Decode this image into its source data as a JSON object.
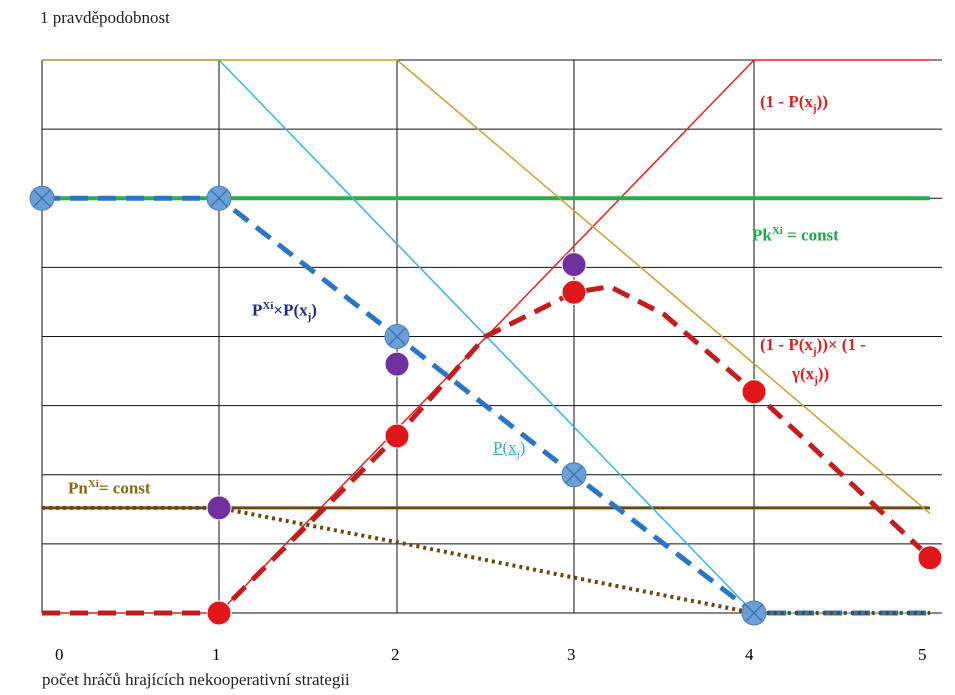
{
  "chart_data": {
    "type": "line",
    "title": "",
    "ylabel": "1 pravděpodobnost",
    "xlabel": "počet hráčů hrajících nekooperativní strategii",
    "x_ticks": [
      "0",
      "1",
      "2",
      "3",
      "4",
      "5"
    ],
    "xlim": [
      0,
      5
    ],
    "ylim": [
      0,
      1
    ],
    "grid": true,
    "series": [
      {
        "name": "(1 - P(xj))",
        "color": "#e8221f",
        "style": "solid",
        "points": [
          [
            0,
            0
          ],
          [
            1,
            0
          ],
          [
            4,
            1
          ],
          [
            5,
            1
          ]
        ]
      },
      {
        "name": "Pk^Xi = const",
        "color": "#22b04a",
        "style": "solid",
        "width": 4,
        "points": [
          [
            0,
            0.75
          ],
          [
            5,
            0.75
          ]
        ]
      },
      {
        "name": "Pn^Xi = const",
        "color": "#6b4612",
        "style": "solid",
        "width": 3,
        "points": [
          [
            0,
            0.19
          ],
          [
            5,
            0.19
          ]
        ]
      },
      {
        "name": "P(xj)",
        "color": "#35b5e8",
        "style": "solid",
        "points": [
          [
            0,
            1
          ],
          [
            1,
            1
          ],
          [
            4,
            0
          ],
          [
            5,
            0
          ]
        ]
      },
      {
        "name": "",
        "color": "#c9a233",
        "style": "solid",
        "points": [
          [
            0,
            1
          ],
          [
            2,
            1
          ],
          [
            5,
            0.18
          ]
        ]
      },
      {
        "name": "P^Xi×P(xj)",
        "color": "#2a75c8",
        "style": "dashed",
        "width": 5,
        "points": [
          [
            0,
            0.75
          ],
          [
            1,
            0.75
          ],
          [
            2,
            0.5
          ],
          [
            3,
            0.25
          ],
          [
            4,
            0
          ],
          [
            5,
            0
          ]
        ]
      },
      {
        "name": "(1 - P(xj))× (1 - γ(xj))",
        "color": "#c41c1c",
        "style": "dashed",
        "width": 5,
        "points": [
          [
            0,
            0
          ],
          [
            1,
            0
          ],
          [
            2,
            0.32
          ],
          [
            2.5,
            0.5
          ],
          [
            3,
            0.58
          ],
          [
            3.2,
            0.59
          ],
          [
            3.5,
            0.54
          ],
          [
            4,
            0.4
          ],
          [
            5,
            0.1
          ]
        ]
      },
      {
        "name": "",
        "color": "#6b4612",
        "style": "dotted",
        "width": 4,
        "points": [
          [
            0,
            0.19
          ],
          [
            1,
            0.19
          ],
          [
            2,
            0.128
          ],
          [
            3,
            0.064
          ],
          [
            4,
            0
          ],
          [
            5,
            0
          ]
        ]
      }
    ],
    "markers": [
      {
        "kind": "cross",
        "color": "#6a9fd8",
        "x": 0,
        "y": 0.75
      },
      {
        "kind": "cross",
        "color": "#6a9fd8",
        "x": 1,
        "y": 0.75
      },
      {
        "kind": "cross",
        "color": "#6a9fd8",
        "x": 2,
        "y": 0.5
      },
      {
        "kind": "cross",
        "color": "#6a9fd8",
        "x": 3,
        "y": 0.25
      },
      {
        "kind": "cross",
        "color": "#6a9fd8",
        "x": 4,
        "y": 0
      },
      {
        "kind": "dot",
        "color": "#7030a0",
        "x": 1,
        "y": 0.19
      },
      {
        "kind": "dot",
        "color": "#7030a0",
        "x": 2,
        "y": 0.45
      },
      {
        "kind": "dot",
        "color": "#7030a0",
        "x": 3,
        "y": 0.63
      },
      {
        "kind": "dot",
        "color": "#e0161b",
        "x": 1,
        "y": 0
      },
      {
        "kind": "dot",
        "color": "#e0161b",
        "x": 2,
        "y": 0.32
      },
      {
        "kind": "dot",
        "color": "#e0161b",
        "x": 3,
        "y": 0.58
      },
      {
        "kind": "dot",
        "color": "#e0161b",
        "x": 4,
        "y": 0.4
      },
      {
        "kind": "dot",
        "color": "#e0161b",
        "x": 5,
        "y": 0.1
      }
    ],
    "annotations": [
      {
        "text": "(1 - P(x",
        "sub": "j",
        "after": "))",
        "color": "#e02020"
      },
      {
        "text": "Pk",
        "sup": "Xi",
        "after": " = const",
        "color": "#1faa4a"
      },
      {
        "text": "P",
        "sup": "Xi",
        "mid": "×P(x",
        "sub": "j",
        "after": ")",
        "color": "#1f2a8c"
      },
      {
        "text": "(1 - P(x",
        "sub": "j",
        "after": "))× (1 -",
        "color": "#e02020"
      },
      {
        "text": "γ(x",
        "sub": "j",
        "after": "))",
        "color": "#e02020"
      },
      {
        "text": "P(x",
        "sub": "j",
        "after": ")",
        "color": "#35a8d8"
      },
      {
        "text": "Pn",
        "sup": "Xi",
        "after": "= const",
        "color": "#8a6a10"
      }
    ]
  }
}
